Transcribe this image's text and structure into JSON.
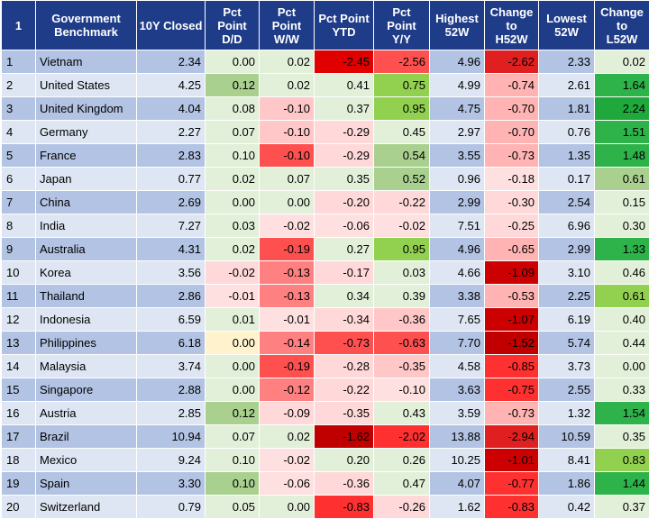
{
  "header": {
    "index": "1",
    "benchmark": "Government\nBenchmark",
    "closed": "10Y Closed",
    "dd": "Pct\nPoint\nD/D",
    "ww": "Pct\nPoint\nW/W",
    "ytd": "Pct Point\nYTD",
    "yy": "Pct\nPoint\nY/Y",
    "h52": "Highest\n52W",
    "ch52": "Change\nto\nH52W",
    "l52": "Lowest\n52W",
    "cl52": "Change\nto\nL52W"
  },
  "colors": {
    "header_bg": "#1f3c88",
    "row_odd": "#b3c3e3",
    "row_even": "#dde6f2"
  },
  "rows": [
    {
      "idx": "1",
      "name": "Vietnam",
      "closed": "2.34",
      "dd": "0.00",
      "ww": "0.02",
      "ytd": "-2.45",
      "yy": "-2.56",
      "h52": "4.96",
      "ch52": "-2.62",
      "l52": "2.33",
      "cl52": "0.02",
      "bg": {
        "dd": "#e2f0d9",
        "ww": "#e2f0d9",
        "ytd": "#e00000",
        "yy": "#ff5050",
        "ch52": "#e02020",
        "cl52": "#e2f0d9"
      }
    },
    {
      "idx": "2",
      "name": "United States",
      "closed": "4.25",
      "dd": "0.12",
      "ww": "0.02",
      "ytd": "0.41",
      "yy": "0.75",
      "h52": "4.99",
      "ch52": "-0.74",
      "l52": "2.61",
      "cl52": "1.64",
      "bg": {
        "dd": "#a9d08e",
        "ww": "#e2f0d9",
        "ytd": "#e2f0d9",
        "yy": "#92d050",
        "ch52": "#ffb3b3",
        "cl52": "#2db34a"
      }
    },
    {
      "idx": "3",
      "name": "United Kingdom",
      "closed": "4.04",
      "dd": "0.08",
      "ww": "-0.10",
      "ytd": "0.37",
      "yy": "0.95",
      "h52": "4.75",
      "ch52": "-0.70",
      "l52": "1.81",
      "cl52": "2.24",
      "bg": {
        "dd": "#e2f0d9",
        "ww": "#ffc7c7",
        "ytd": "#e2f0d9",
        "yy": "#92d050",
        "ch52": "#ffb3b3",
        "cl52": "#1fa83c"
      }
    },
    {
      "idx": "4",
      "name": "Germany",
      "closed": "2.27",
      "dd": "0.07",
      "ww": "-0.10",
      "ytd": "-0.29",
      "yy": "0.45",
      "h52": "2.97",
      "ch52": "-0.70",
      "l52": "0.76",
      "cl52": "1.51",
      "bg": {
        "dd": "#e2f0d9",
        "ww": "#ffc7c7",
        "ytd": "#ffd9d9",
        "yy": "#e2f0d9",
        "ch52": "#ffb3b3",
        "cl52": "#2db34a"
      }
    },
    {
      "idx": "5",
      "name": "France",
      "closed": "2.83",
      "dd": "0.10",
      "ww": "-0.10",
      "ytd": "-0.29",
      "yy": "0.54",
      "h52": "3.55",
      "ch52": "-0.73",
      "l52": "1.35",
      "cl52": "1.48",
      "bg": {
        "dd": "#e2f0d9",
        "ww": "#ff5050",
        "ytd": "#ffd9d9",
        "yy": "#a9d08e",
        "ch52": "#ffb3b3",
        "cl52": "#2db34a"
      }
    },
    {
      "idx": "6",
      "name": "Japan",
      "closed": "0.77",
      "dd": "0.02",
      "ww": "0.07",
      "ytd": "0.35",
      "yy": "0.52",
      "h52": "0.96",
      "ch52": "-0.18",
      "l52": "0.17",
      "cl52": "0.61",
      "bg": {
        "dd": "#e2f0d9",
        "ww": "#e2f0d9",
        "ytd": "#e2f0d9",
        "yy": "#a9d08e",
        "ch52": "#ffe0e0",
        "cl52": "#a9d08e"
      }
    },
    {
      "idx": "7",
      "name": "China",
      "closed": "2.69",
      "dd": "0.00",
      "ww": "0.00",
      "ytd": "-0.20",
      "yy": "-0.22",
      "h52": "2.99",
      "ch52": "-0.30",
      "l52": "2.54",
      "cl52": "0.15",
      "bg": {
        "dd": "#e2f0d9",
        "ww": "#e2f0d9",
        "ytd": "#ffd9d9",
        "yy": "#ffd9d9",
        "ch52": "#ffd9d9",
        "cl52": "#e2f0d9"
      }
    },
    {
      "idx": "8",
      "name": "India",
      "closed": "7.27",
      "dd": "0.03",
      "ww": "-0.02",
      "ytd": "-0.06",
      "yy": "-0.02",
      "h52": "7.51",
      "ch52": "-0.25",
      "l52": "6.96",
      "cl52": "0.30",
      "bg": {
        "dd": "#e2f0d9",
        "ww": "#ffe0e0",
        "ytd": "#ffe0e0",
        "yy": "#ffe0e0",
        "ch52": "#ffd9d9",
        "cl52": "#e2f0d9"
      }
    },
    {
      "idx": "9",
      "name": "Australia",
      "closed": "4.31",
      "dd": "0.02",
      "ww": "-0.19",
      "ytd": "0.27",
      "yy": "0.95",
      "h52": "4.96",
      "ch52": "-0.65",
      "l52": "2.99",
      "cl52": "1.33",
      "bg": {
        "dd": "#e2f0d9",
        "ww": "#ff5050",
        "ytd": "#e2f0d9",
        "yy": "#92d050",
        "ch52": "#ffb3b3",
        "cl52": "#2db34a"
      }
    },
    {
      "idx": "10",
      "name": "Korea",
      "closed": "3.56",
      "dd": "-0.02",
      "ww": "-0.13",
      "ytd": "-0.17",
      "yy": "0.03",
      "h52": "4.66",
      "ch52": "-1.09",
      "l52": "3.10",
      "cl52": "0.46",
      "bg": {
        "dd": "#ffd9d9",
        "ww": "#ff8080",
        "ytd": "#ffd9d9",
        "yy": "#e2f0d9",
        "ch52": "#cc0000",
        "cl52": "#e2f0d9"
      }
    },
    {
      "idx": "11",
      "name": "Thailand",
      "closed": "2.86",
      "dd": "-0.01",
      "ww": "-0.13",
      "ytd": "0.34",
      "yy": "0.39",
      "h52": "3.38",
      "ch52": "-0.53",
      "l52": "2.25",
      "cl52": "0.61",
      "bg": {
        "dd": "#ffe0e0",
        "ww": "#ff8080",
        "ytd": "#e2f0d9",
        "yy": "#e2f0d9",
        "ch52": "#ffb3b3",
        "cl52": "#92d050"
      }
    },
    {
      "idx": "12",
      "name": "Indonesia",
      "closed": "6.59",
      "dd": "0.01",
      "ww": "-0.01",
      "ytd": "-0.34",
      "yy": "-0.36",
      "h52": "7.65",
      "ch52": "-1.07",
      "l52": "6.19",
      "cl52": "0.40",
      "bg": {
        "dd": "#e2f0d9",
        "ww": "#ffe0e0",
        "ytd": "#ffd9d9",
        "yy": "#ffc7c7",
        "ch52": "#cc0000",
        "cl52": "#e2f0d9"
      }
    },
    {
      "idx": "13",
      "name": "Philippines",
      "closed": "6.18",
      "dd": "0.00",
      "ww": "-0.14",
      "ytd": "-0.73",
      "yy": "-0.63",
      "h52": "7.70",
      "ch52": "-1.52",
      "l52": "5.74",
      "cl52": "0.44",
      "bg": {
        "dd": "#fff2cc",
        "ww": "#ff8080",
        "ytd": "#ff5050",
        "yy": "#ff5050",
        "ch52": "#c00000",
        "cl52": "#e2f0d9"
      }
    },
    {
      "idx": "14",
      "name": "Malaysia",
      "closed": "3.74",
      "dd": "0.00",
      "ww": "-0.19",
      "ytd": "-0.28",
      "yy": "-0.35",
      "h52": "4.58",
      "ch52": "-0.85",
      "l52": "3.73",
      "cl52": "0.00",
      "bg": {
        "dd": "#e2f0d9",
        "ww": "#ff5050",
        "ytd": "#ffd9d9",
        "yy": "#ffc7c7",
        "ch52": "#ff3030",
        "cl52": "#e2f0d9"
      }
    },
    {
      "idx": "15",
      "name": "Singapore",
      "closed": "2.88",
      "dd": "0.00",
      "ww": "-0.12",
      "ytd": "-0.22",
      "yy": "-0.10",
      "h52": "3.63",
      "ch52": "-0.75",
      "l52": "2.55",
      "cl52": "0.33",
      "bg": {
        "dd": "#e2f0d9",
        "ww": "#ff8080",
        "ytd": "#ffd9d9",
        "yy": "#ffe0e0",
        "ch52": "#ff3030",
        "cl52": "#e2f0d9"
      }
    },
    {
      "idx": "16",
      "name": "Austria",
      "closed": "2.85",
      "dd": "0.12",
      "ww": "-0.09",
      "ytd": "-0.35",
      "yy": "0.43",
      "h52": "3.59",
      "ch52": "-0.73",
      "l52": "1.32",
      "cl52": "1.54",
      "bg": {
        "dd": "#a9d08e",
        "ww": "#ffd9d9",
        "ytd": "#ffd9d9",
        "yy": "#e2f0d9",
        "ch52": "#ffb3b3",
        "cl52": "#2db34a"
      }
    },
    {
      "idx": "17",
      "name": "Brazil",
      "closed": "10.94",
      "dd": "0.07",
      "ww": "0.02",
      "ytd": "-1.62",
      "yy": "-2.02",
      "h52": "13.88",
      "ch52": "-2.94",
      "l52": "10.59",
      "cl52": "0.35",
      "bg": {
        "dd": "#e2f0d9",
        "ww": "#e2f0d9",
        "ytd": "#c00000",
        "yy": "#ff3030",
        "ch52": "#e02020",
        "cl52": "#e2f0d9"
      }
    },
    {
      "idx": "18",
      "name": "Mexico",
      "closed": "9.24",
      "dd": "0.10",
      "ww": "-0.02",
      "ytd": "0.20",
      "yy": "0.26",
      "h52": "10.25",
      "ch52": "-1.01",
      "l52": "8.41",
      "cl52": "0.83",
      "bg": {
        "dd": "#e2f0d9",
        "ww": "#ffe0e0",
        "ytd": "#e2f0d9",
        "yy": "#e2f0d9",
        "ch52": "#cc0000",
        "cl52": "#92d050"
      }
    },
    {
      "idx": "19",
      "name": "Spain",
      "closed": "3.30",
      "dd": "0.10",
      "ww": "-0.06",
      "ytd": "-0.36",
      "yy": "0.47",
      "h52": "4.07",
      "ch52": "-0.77",
      "l52": "1.86",
      "cl52": "1.44",
      "bg": {
        "dd": "#a9d08e",
        "ww": "#ffe0e0",
        "ytd": "#ffd9d9",
        "yy": "#e2f0d9",
        "ch52": "#ff3030",
        "cl52": "#2db34a"
      }
    },
    {
      "idx": "20",
      "name": "Switzerland",
      "closed": "0.79",
      "dd": "0.05",
      "ww": "0.00",
      "ytd": "-0.83",
      "yy": "-0.26",
      "h52": "1.62",
      "ch52": "-0.83",
      "l52": "0.42",
      "cl52": "0.37",
      "bg": {
        "dd": "#e2f0d9",
        "ww": "#e2f0d9",
        "ytd": "#ff3030",
        "yy": "#ffd9d9",
        "ch52": "#ff3030",
        "cl52": "#e2f0d9"
      }
    }
  ]
}
